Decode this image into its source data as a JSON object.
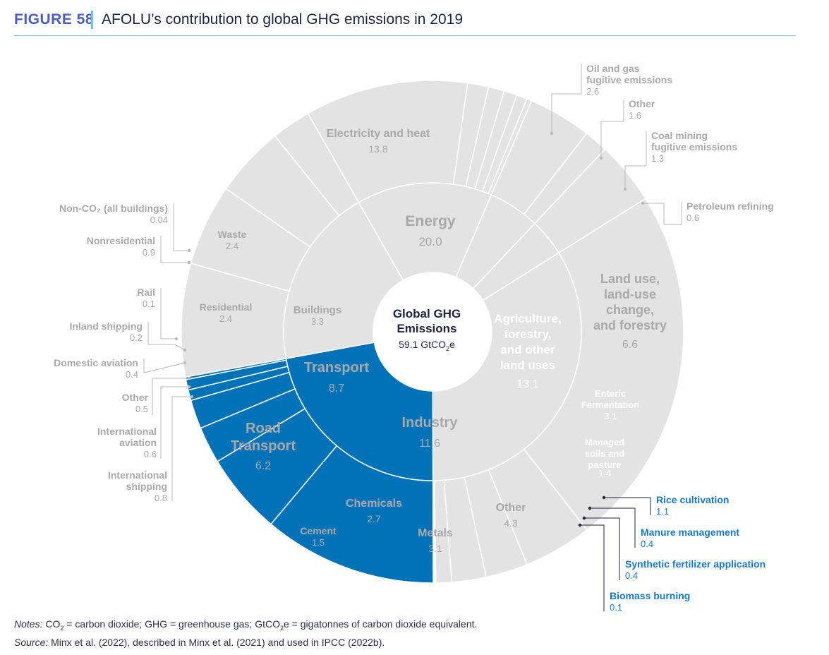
{
  "header": {
    "figure_label": "FIGURE 58",
    "title": "AFOLU’s contribution to global GHG emissions in 2019"
  },
  "center": {
    "title_line1": "Global GHG",
    "title_line2": "Emissions",
    "value_prefix": "59.1 GtCO",
    "value_sub": "2",
    "value_suffix": "e"
  },
  "colors": {
    "grey": "#e3e3e3",
    "grey_text": "#a9a9a9",
    "grey_line": "#b9b9b9",
    "afolu": "#0072b8",
    "afolu_text": "#1a78c2",
    "dark": "#1f2340"
  },
  "chart_data": {
    "type": "sunburst",
    "title": "AFOLU’s contribution to global GHG emissions in 2019",
    "total": 59.1,
    "unit": "GtCO2e",
    "sectors": [
      {
        "name": "Energy",
        "value": 20.0,
        "highlight": false,
        "children": [
          {
            "name": "Electricity and heat",
            "value": 13.8
          },
          {
            "name": "Oil and gas fugitive emissions",
            "value": 2.6
          },
          {
            "name": "Other",
            "value": 1.6
          },
          {
            "name": "Coal mining fugitive emissions",
            "value": 1.3
          },
          {
            "name": "Petroleum refining",
            "value": 0.6
          }
        ]
      },
      {
        "name": "Agriculture, forestry, and other land uses",
        "value": 13.1,
        "highlight": true,
        "children": [
          {
            "name": "Land use, land-use change, and forestry",
            "value": 6.6
          },
          {
            "name": "Enteric Fermentation",
            "value": 3.1
          },
          {
            "name": "Managed soils and pasture",
            "value": 1.4
          },
          {
            "name": "Rice cultivation",
            "value": 1.1
          },
          {
            "name": "Manure management",
            "value": 0.4
          },
          {
            "name": "Synthetic fertilizer application",
            "value": 0.4
          },
          {
            "name": "Biomass burning",
            "value": 0.1
          }
        ]
      },
      {
        "name": "Industry",
        "value": 11.6,
        "highlight": false,
        "children": [
          {
            "name": "Other",
            "value": 4.3
          },
          {
            "name": "Metals",
            "value": 3.1
          },
          {
            "name": "Chemicals",
            "value": 2.7
          },
          {
            "name": "Cement",
            "value": 1.5
          }
        ]
      },
      {
        "name": "Transport",
        "value": 8.7,
        "highlight": false,
        "children": [
          {
            "name": "Road Transport",
            "value": 6.2
          },
          {
            "name": "International shipping",
            "value": 0.8
          },
          {
            "name": "International aviation",
            "value": 0.6
          },
          {
            "name": "Other",
            "value": 0.5
          },
          {
            "name": "Domestic aviation",
            "value": 0.4
          },
          {
            "name": "Inland shipping",
            "value": 0.2
          },
          {
            "name": "Rail",
            "value": 0.1
          }
        ]
      },
      {
        "name": "Buildings",
        "value": 3.3,
        "highlight": false,
        "children": [
          {
            "name": "Residential",
            "value": 2.4
          },
          {
            "name": "Nonresidential",
            "value": 0.9
          },
          {
            "name": "Non-CO₂ (all buildings)",
            "value": 0.04
          }
        ]
      },
      {
        "name": "Waste",
        "value": 2.4,
        "highlight": false,
        "children": []
      }
    ],
    "inner_labels": [
      {
        "lines": [
          "Energy"
        ],
        "value": "20.0"
      },
      {
        "lines": [
          "Agriculture,",
          "forestry,",
          "and other",
          "land uses"
        ],
        "value": "13.1"
      },
      {
        "lines": [
          "Industry"
        ],
        "value": "11.6"
      },
      {
        "lines": [
          "Transport"
        ],
        "value": "8.7"
      },
      {
        "lines": [
          "Buildings"
        ],
        "value": "3.3"
      }
    ],
    "outer_labels": [
      {
        "lines": [
          "Electricity and heat"
        ],
        "value": "13.8"
      },
      {
        "lines": [
          "Land use,",
          "land-use",
          "change,",
          "and forestry"
        ],
        "value": "6.6"
      },
      {
        "lines": [
          "Enteric",
          "Fermentation"
        ],
        "value": "3.1"
      },
      {
        "lines": [
          "Managed",
          "soils and",
          "pasture"
        ],
        "value": "1.4"
      },
      {
        "lines": [
          "Other"
        ],
        "value": "4.3"
      },
      {
        "lines": [
          "Metals"
        ],
        "value": "3.1"
      },
      {
        "lines": [
          "Chemicals"
        ],
        "value": "2.7"
      },
      {
        "lines": [
          "Cement"
        ],
        "value": "1.5"
      },
      {
        "lines": [
          "Road",
          "Transport"
        ],
        "value": "6.2"
      },
      {
        "lines": [
          "Residential"
        ],
        "value": "2.4"
      },
      {
        "lines": [
          "Waste"
        ],
        "value": "2.4"
      }
    ],
    "callouts": [
      {
        "lines": [
          "Oil and gas",
          "fugitive emissions"
        ],
        "value": "2.6"
      },
      {
        "lines": [
          "Other"
        ],
        "value": "1.6"
      },
      {
        "lines": [
          "Coal mining",
          "fugitive emissions"
        ],
        "value": "1.3"
      },
      {
        "lines": [
          "Petroleum refining"
        ],
        "value": "0.6"
      },
      {
        "lines": [
          "Non-CO₂ (all buildings)"
        ],
        "value": "0.04"
      },
      {
        "lines": [
          "Nonresidential"
        ],
        "value": "0.9"
      },
      {
        "lines": [
          "Rail"
        ],
        "value": "0.1"
      },
      {
        "lines": [
          "Inland shipping"
        ],
        "value": "0.2"
      },
      {
        "lines": [
          "Domestic aviation"
        ],
        "value": "0.4"
      },
      {
        "lines": [
          "Other"
        ],
        "value": "0.5"
      },
      {
        "lines": [
          "International",
          "aviation"
        ],
        "value": "0.6"
      },
      {
        "lines": [
          "International",
          "shipping"
        ],
        "value": "0.8"
      },
      {
        "lines": [
          "Rice cultivation"
        ],
        "value": "1.1"
      },
      {
        "lines": [
          "Manure management"
        ],
        "value": "0.4"
      },
      {
        "lines": [
          "Synthetic fertilizer application"
        ],
        "value": "0.4"
      },
      {
        "lines": [
          "Biomass burning"
        ],
        "value": "0.1"
      }
    ]
  },
  "notes": {
    "notes_label": "Notes:",
    "notes_text_a": " CO",
    "notes_sub_a": "2",
    "notes_text_b": " = carbon dioxide; GHG = greenhouse gas; GtCO",
    "notes_sub_b": "2",
    "notes_text_c": "e = gigatonnes of carbon dioxide equivalent.",
    "source_label": "Source:",
    "source_text": " Minx et al. (2022), described in Minx et al. (2021) and used in IPCC (2022b)."
  }
}
